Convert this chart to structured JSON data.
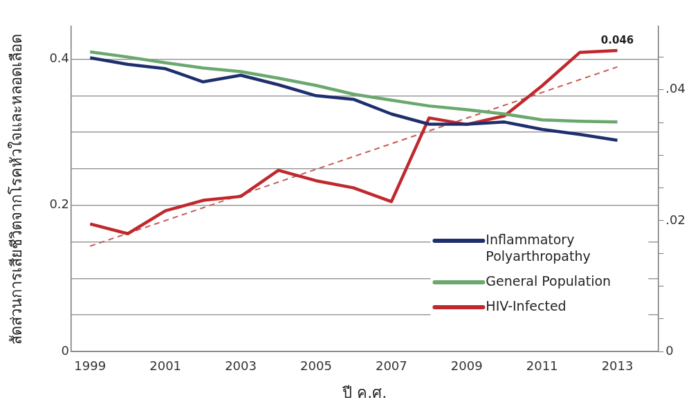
{
  "chart_data": {
    "type": "line",
    "ylabel": "สัดส่วนการเสียชีวิตจากโรคหัวใจและหลอดเลือด",
    "xlabel": "ปี ค.ศ.",
    "x": [
      1999,
      2000,
      2001,
      2002,
      2003,
      2004,
      2005,
      2006,
      2007,
      2008,
      2009,
      2010,
      2011,
      2012,
      2013
    ],
    "xlim": [
      1998.5,
      2014.08
    ],
    "xticks": [
      1999,
      2001,
      2003,
      2005,
      2007,
      2009,
      2011,
      2013
    ],
    "ylim": [
      0,
      0.445
    ],
    "yticks": [
      0,
      {
        "value": 0.05,
        "label": null
      },
      {
        "value": 0.1,
        "label": null
      },
      {
        "value": 0.15,
        "label": null
      },
      0.2,
      {
        "value": 0.25,
        "label": null
      },
      {
        "value": 0.3,
        "label": null
      },
      {
        "value": 0.35,
        "label": null
      },
      0.4
    ],
    "y2lim": [
      0,
      0.0497
    ],
    "y2ticks": [
      0,
      {
        "value": 0.005,
        "label": null
      },
      {
        "value": 0.01,
        "label": null
      },
      {
        "value": 0.015,
        "label": null
      },
      {
        "value": 0.02,
        "label": ".02"
      },
      {
        "value": 0.025,
        "label": null
      },
      {
        "value": 0.03,
        "label": null
      },
      {
        "value": 0.035,
        "label": null
      },
      {
        "value": 0.04,
        "label": ".04"
      },
      {
        "value": 0.045,
        "label": null
      }
    ],
    "grid": "y",
    "legend": "bottom right",
    "marker": "none",
    "series": [
      {
        "name": "Inflammatory Polyarthropathy",
        "color": "#1f2f6e",
        "values": [
          0.402,
          0.393,
          0.387,
          0.369,
          0.378,
          0.365,
          0.35,
          0.345,
          0.325,
          0.311,
          0.311,
          0.314,
          0.304,
          0.297,
          0.289
        ]
      },
      {
        "name": "General Population",
        "color": "#6aa86e",
        "values": [
          0.41,
          0.403,
          0.395,
          0.388,
          0.383,
          0.374,
          0.364,
          0.352,
          0.344,
          0.336,
          0.331,
          0.325,
          0.317,
          0.315,
          0.314
        ]
      },
      {
        "name": "HIV-Infected",
        "color": "#c0282d",
        "axis": "y2",
        "values": [
          0.0195,
          0.018,
          0.0215,
          0.0231,
          0.0237,
          0.0277,
          0.0261,
          0.025,
          0.0229,
          0.0357,
          0.0347,
          0.036,
          0.0406,
          0.0457,
          0.046
        ],
        "value_labels": [
          null,
          null,
          null,
          null,
          null,
          null,
          null,
          null,
          null,
          null,
          null,
          null,
          null,
          null,
          "0.046"
        ]
      },
      {
        "type": "line",
        "color": "#c65a55",
        "axis": "y2",
        "line_style": "dashed",
        "x": [
          1999,
          2013
        ],
        "values": [
          0.0161,
          0.0435
        ]
      }
    ]
  }
}
